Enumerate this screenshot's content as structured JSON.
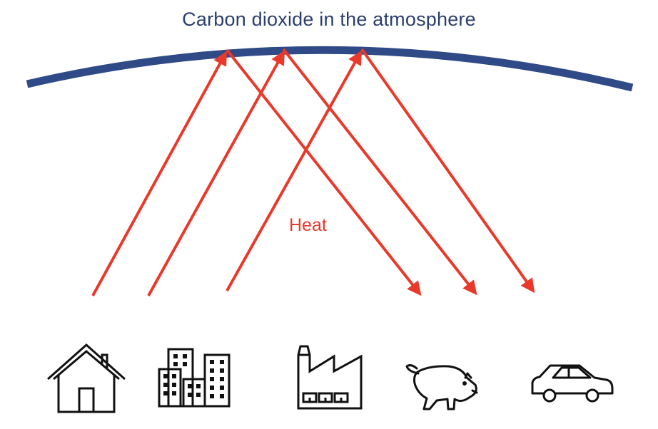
{
  "title": "Carbon dioxide in the atmosphere",
  "heat_label": "Heat",
  "colors": {
    "atmosphere": "#2F4A86",
    "title": "#2B3E6E",
    "arrows": "#E8392B",
    "heat_label": "#E8392B",
    "icons": "#111111"
  },
  "sources": [
    {
      "name": "house",
      "icon": "house-icon"
    },
    {
      "name": "city buildings",
      "icon": "buildings-icon"
    },
    {
      "name": "factory",
      "icon": "factory-icon"
    },
    {
      "name": "livestock",
      "icon": "pig-icon"
    },
    {
      "name": "car",
      "icon": "car-icon"
    }
  ]
}
